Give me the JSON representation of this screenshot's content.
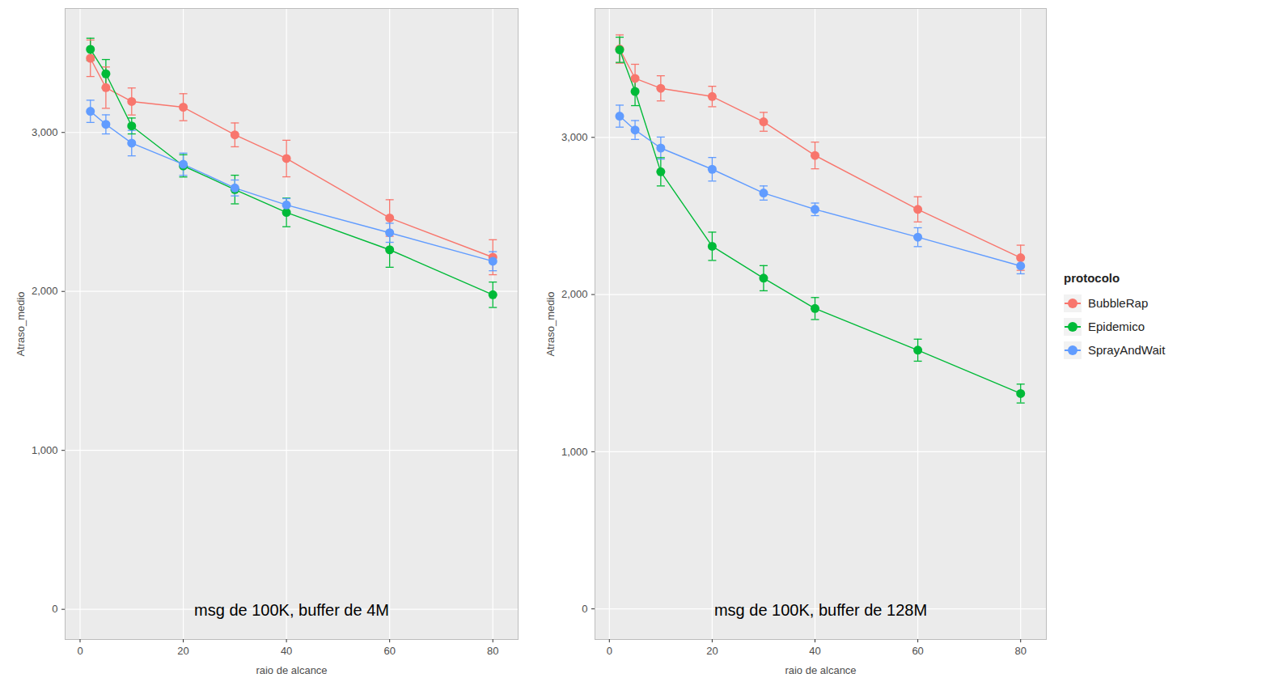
{
  "chart_data": [
    {
      "type": "line",
      "annotation": "msg de 100K, buffer de 4M",
      "xlabel": "raio de alcance",
      "ylabel": "Atraso_medio",
      "x": [
        2,
        5,
        10,
        20,
        30,
        40,
        60,
        80
      ],
      "xlim": [
        -2.9,
        84.9
      ],
      "xticks": [
        0,
        20,
        40,
        60,
        80
      ],
      "ylim": [
        -190,
        3780
      ],
      "yticks": [
        0,
        1000,
        2000,
        3000
      ],
      "grid": true,
      "marker": "circle",
      "series": [
        {
          "name": "BubbleRap",
          "color": "#F8766D",
          "values": [
            3467,
            3282,
            3195,
            3159,
            2985,
            2836,
            2462,
            2215
          ],
          "error": [
            115,
            130,
            85,
            85,
            75,
            115,
            115,
            110
          ]
        },
        {
          "name": "Epidemico",
          "color": "#00BA38",
          "values": [
            3523,
            3369,
            3041,
            2790,
            2641,
            2497,
            2262,
            1979
          ],
          "error": [
            70,
            90,
            50,
            70,
            90,
            90,
            110,
            80
          ]
        },
        {
          "name": "SprayAndWait",
          "color": "#619CFF",
          "values": [
            3133,
            3051,
            2933,
            2800,
            2651,
            2544,
            2369,
            2190
          ],
          "error": [
            70,
            60,
            80,
            70,
            50,
            40,
            60,
            60
          ]
        }
      ]
    },
    {
      "type": "line",
      "annotation": "msg de 100K, buffer de 128M",
      "xlabel": "raio de alcance",
      "ylabel": "Atraso_medio",
      "x": [
        2,
        5,
        10,
        20,
        30,
        40,
        60,
        80
      ],
      "xlim": [
        -2.8,
        85
      ],
      "xticks": [
        0,
        20,
        40,
        60,
        80
      ],
      "ylim": [
        -195,
        3820
      ],
      "yticks": [
        0,
        1000,
        2000,
        3000
      ],
      "grid": true,
      "marker": "circle",
      "legend": "right",
      "legend_title": "protocolo",
      "series": [
        {
          "name": "BubbleRap",
          "color": "#F8766D",
          "values": [
            3562,
            3375,
            3312,
            3260,
            3099,
            2885,
            2542,
            2234
          ],
          "error": [
            90,
            90,
            80,
            65,
            60,
            85,
            80,
            80
          ]
        },
        {
          "name": "Epidemico",
          "color": "#00BA38",
          "values": [
            3557,
            3292,
            2781,
            2307,
            2104,
            1911,
            1646,
            1370
          ],
          "error": [
            80,
            90,
            90,
            90,
            80,
            70,
            70,
            60
          ]
        },
        {
          "name": "SprayAndWait",
          "color": "#619CFF",
          "values": [
            3135,
            3047,
            2932,
            2797,
            2646,
            2542,
            2365,
            2182
          ],
          "error": [
            70,
            60,
            70,
            75,
            45,
            40,
            60,
            50
          ]
        }
      ]
    }
  ]
}
